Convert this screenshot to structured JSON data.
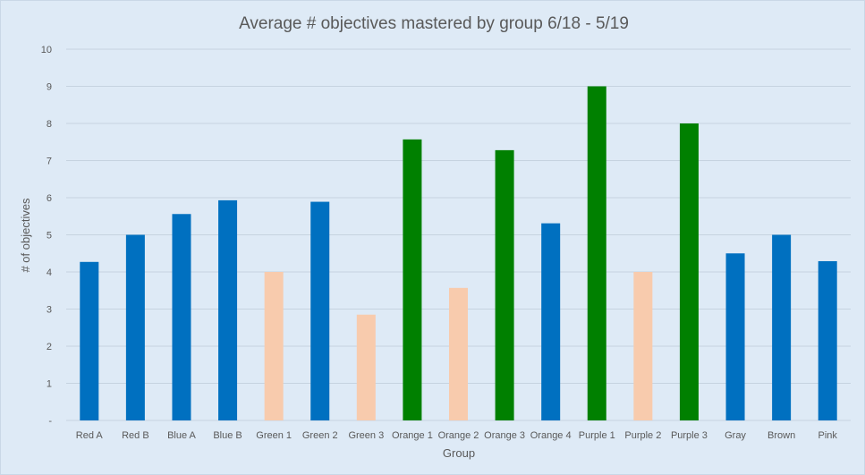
{
  "chart_data": {
    "type": "bar",
    "title": "Average # objectives mastered by group 6/18 - 5/19",
    "xlabel": "Group",
    "ylabel": "# of objectives",
    "ylim": [
      0,
      10
    ],
    "y_ticks": [
      "-",
      "1",
      "2",
      "3",
      "4",
      "5",
      "6",
      "7",
      "8",
      "9",
      "10"
    ],
    "grid": true,
    "legend": "none",
    "categories": [
      "Red A",
      "Red B",
      "Blue A",
      "Blue B",
      "Green 1",
      "Green 2",
      "Green 3",
      "Orange 1",
      "Orange 2",
      "Orange 3",
      "Orange 4",
      "Purple 1",
      "Purple 2",
      "Purple 3",
      "Gray",
      "Brown",
      "Pink"
    ],
    "values": [
      4.27,
      5.0,
      5.56,
      5.93,
      4.0,
      5.89,
      2.85,
      7.57,
      3.57,
      7.28,
      5.31,
      9.0,
      4.0,
      8.0,
      4.5,
      5.0,
      4.29
    ],
    "bar_colors": [
      "#0070c0",
      "#0070c0",
      "#0070c0",
      "#0070c0",
      "#f8cbad",
      "#0070c0",
      "#f8cbad",
      "#008000",
      "#f8cbad",
      "#008000",
      "#0070c0",
      "#008000",
      "#f8cbad",
      "#008000",
      "#0070c0",
      "#0070c0",
      "#0070c0"
    ]
  }
}
